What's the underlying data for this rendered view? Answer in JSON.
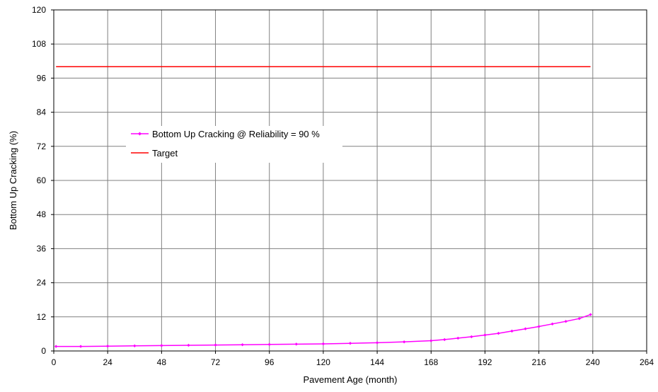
{
  "chart_data": {
    "type": "line",
    "title": "",
    "xlabel": "Pavement Age (month)",
    "ylabel": "Bottom Up Cracking (%)",
    "xlim": [
      0,
      264
    ],
    "ylim": [
      0,
      120
    ],
    "xticks": [
      "0",
      "24",
      "48",
      "72",
      "96",
      "120",
      "144",
      "168",
      "192",
      "216",
      "240",
      "264"
    ],
    "yticks": [
      "0",
      "12",
      "24",
      "36",
      "48",
      "60",
      "72",
      "84",
      "96",
      "108",
      "120"
    ],
    "grid": true,
    "legend_position": "upper-left",
    "series": [
      {
        "name": "Bottom Up Cracking @ Reliability = 90 %",
        "color": "#ff00ff",
        "marker": "diamond",
        "x": [
          1,
          12,
          24,
          36,
          48,
          60,
          72,
          84,
          96,
          108,
          120,
          132,
          144,
          156,
          168,
          174,
          180,
          186,
          192,
          198,
          204,
          210,
          216,
          222,
          228,
          234,
          239
        ],
        "y": [
          1.6,
          1.6,
          1.7,
          1.8,
          1.9,
          2.0,
          2.1,
          2.2,
          2.3,
          2.4,
          2.5,
          2.7,
          2.9,
          3.2,
          3.6,
          4.0,
          4.5,
          5.0,
          5.6,
          6.2,
          7.0,
          7.8,
          8.6,
          9.5,
          10.4,
          11.4,
          12.8
        ]
      },
      {
        "name": "Target",
        "color": "#ff0000",
        "marker": "none",
        "x": [
          1,
          239
        ],
        "y": [
          100,
          100
        ]
      }
    ]
  }
}
